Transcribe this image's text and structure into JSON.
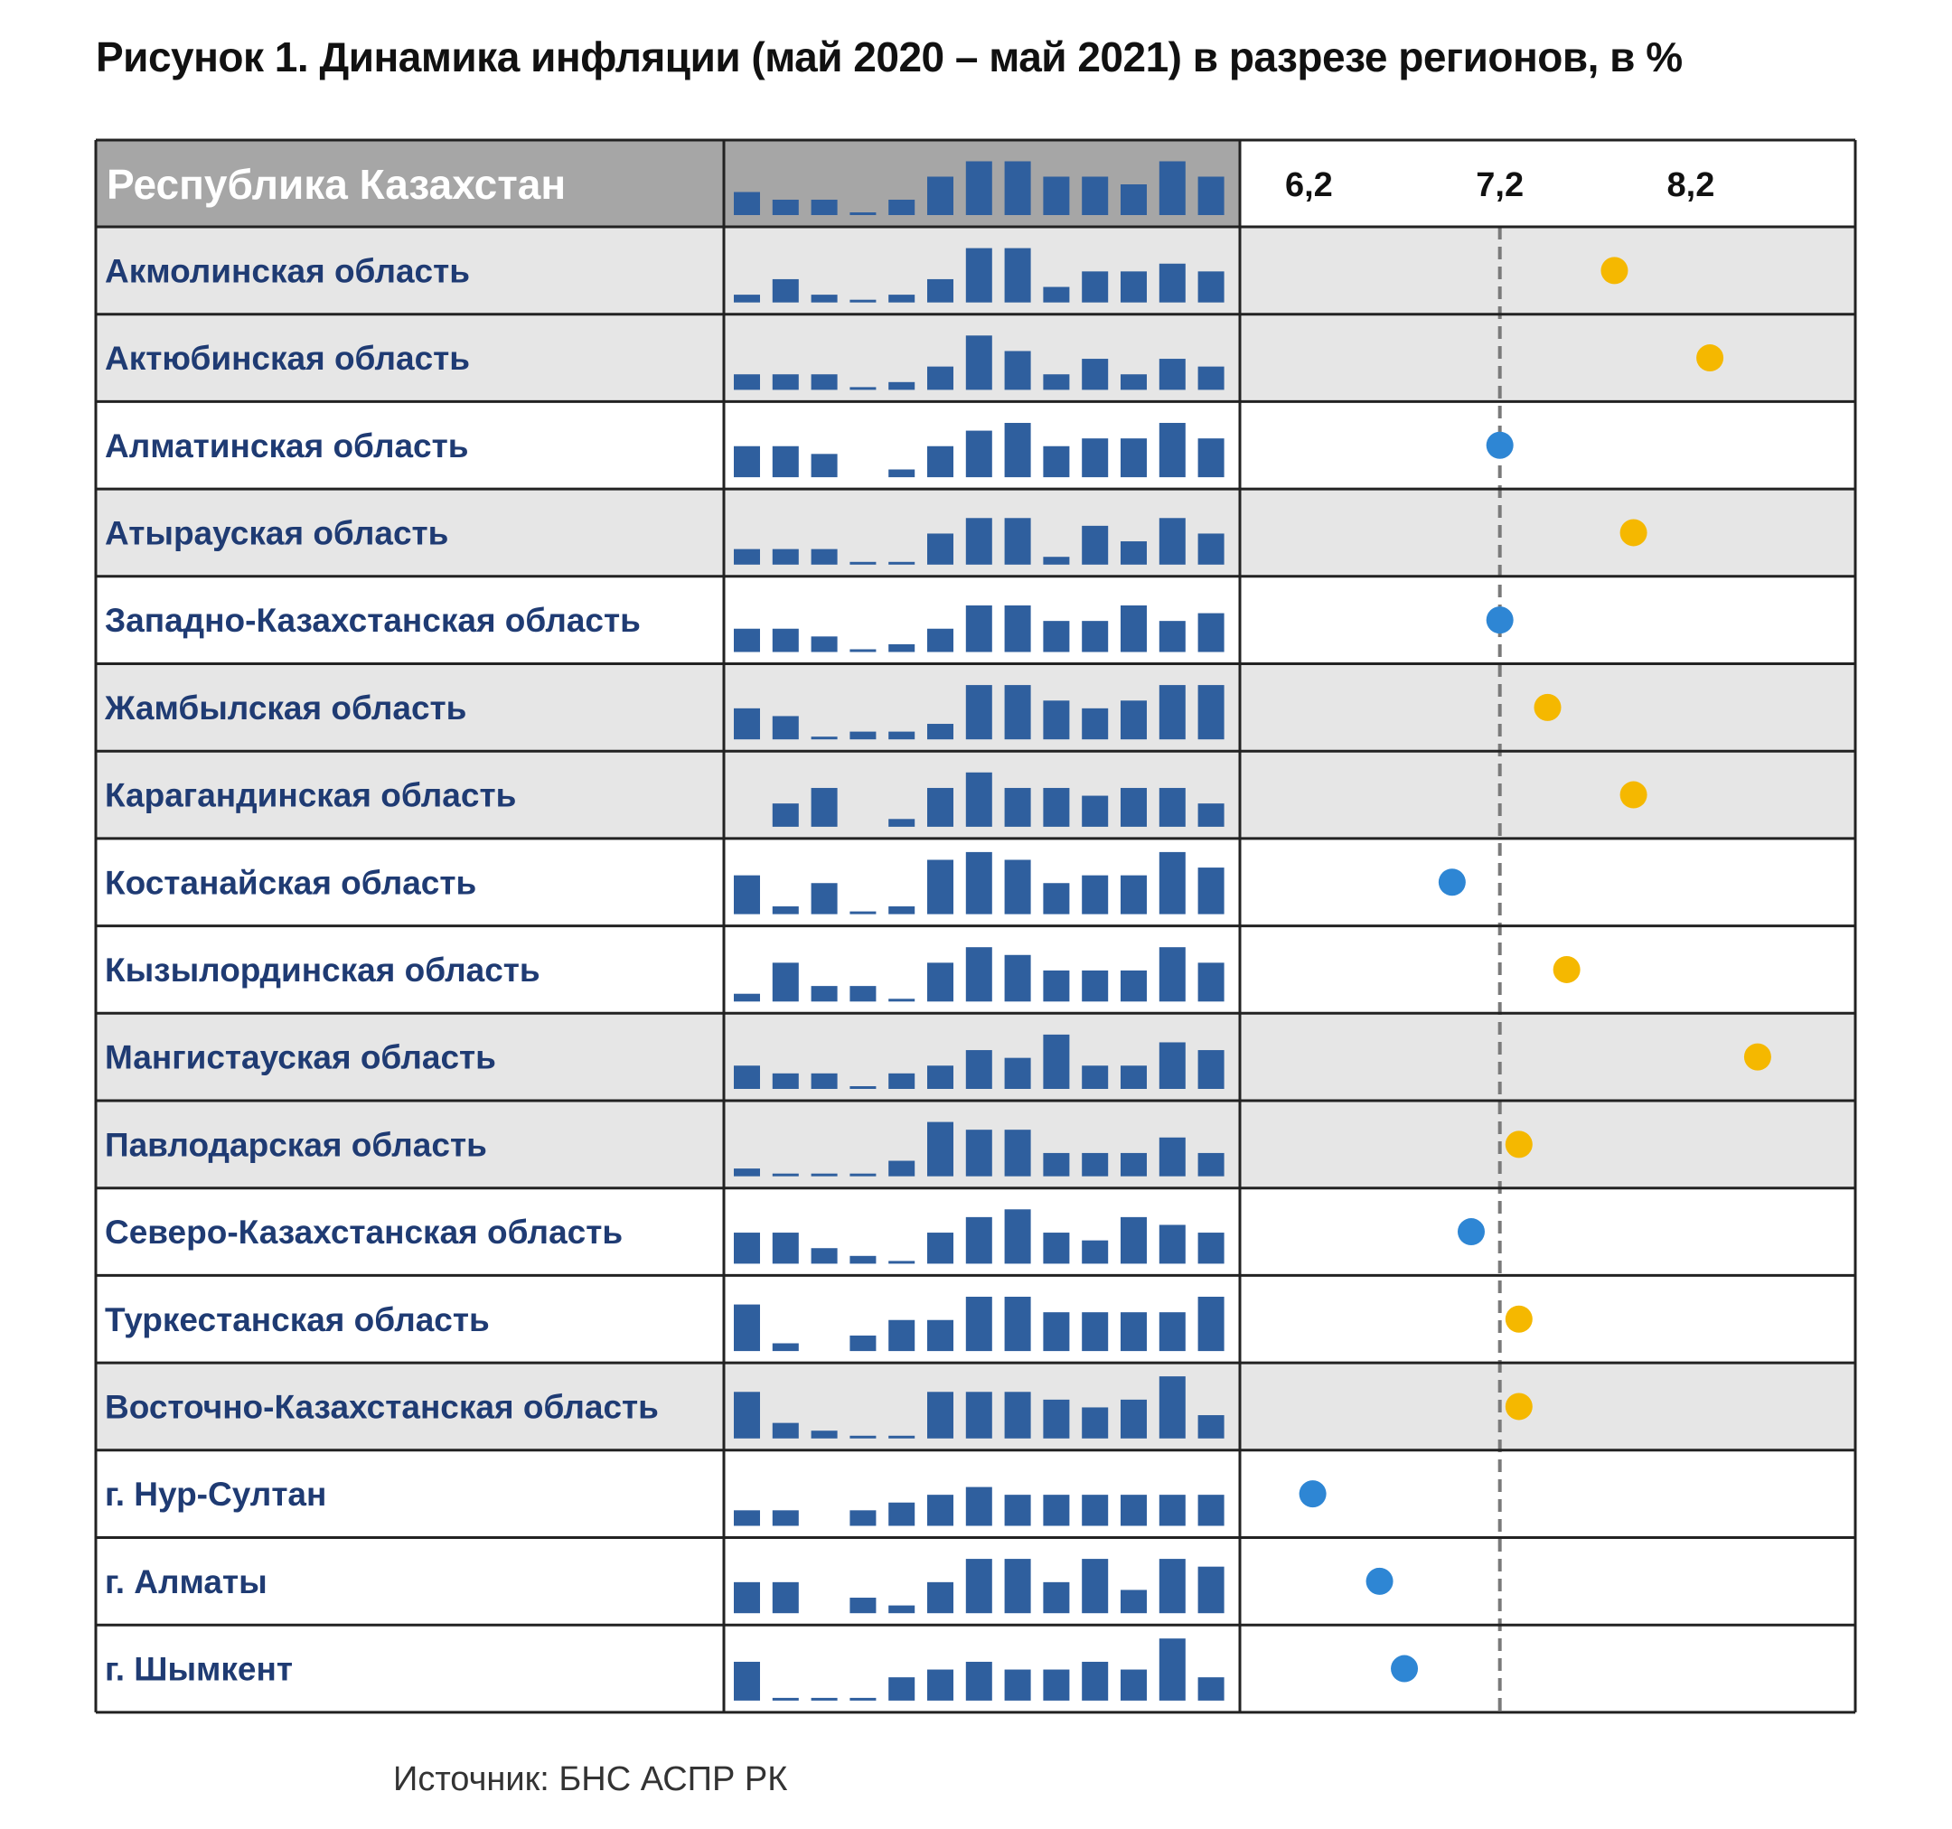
{
  "title": "Рисунок 1. Динамика инфляции (май 2020 – май 2021) в разрезе регионов, в %",
  "source": "Источник: БНС АСПР РК",
  "colors": {
    "bar": "#2f5f9e",
    "header_bg": "#a6a6a6",
    "row_shaded": "#e6e6e6",
    "row_white": "#ffffff",
    "label": "#1f3b73",
    "dot_above": "#f5b800",
    "dot_below": "#2e86d4",
    "reference_line": "#7a7a7a",
    "border": "#222222"
  },
  "chart_data": {
    "type": "table",
    "header": {
      "label": "Республика Казахстан",
      "sparkline": [
        3,
        2,
        2,
        0,
        2,
        5,
        7,
        7,
        5,
        5,
        4,
        7,
        5
      ],
      "axis_ticks": [
        "6,2",
        "7,2",
        "8,2"
      ]
    },
    "x_axis": {
      "min": 5.9,
      "max": 9.0,
      "tick_values": [
        6.2,
        7.2,
        8.2
      ]
    },
    "reference_value": 7.2,
    "sparkline_months": 13,
    "sparkline_note": "relative monthly inflation levels, май 2020 – май 2021",
    "rows": [
      {
        "label": "Акмолинская область",
        "shaded": true,
        "value": 7.8,
        "above": true,
        "sparkline": [
          1,
          3,
          1,
          0,
          1,
          3,
          7,
          7,
          2,
          4,
          4,
          5,
          4
        ]
      },
      {
        "label": "Актюбинская область",
        "shaded": true,
        "value": 8.3,
        "above": true,
        "sparkline": [
          2,
          2,
          2,
          0,
          1,
          3,
          7,
          5,
          2,
          4,
          2,
          4,
          3
        ]
      },
      {
        "label": "Алматинская область",
        "shaded": false,
        "value": 7.2,
        "above": false,
        "sparkline": [
          4,
          4,
          3,
          null,
          1,
          4,
          6,
          7,
          4,
          5,
          5,
          7,
          5
        ]
      },
      {
        "label": "Атырауская область",
        "shaded": true,
        "value": 7.9,
        "above": true,
        "sparkline": [
          2,
          2,
          2,
          0,
          0,
          4,
          6,
          6,
          1,
          5,
          3,
          6,
          4
        ]
      },
      {
        "label": "Западно-Казахстанская область",
        "shaded": false,
        "value": 7.2,
        "above": false,
        "sparkline": [
          3,
          3,
          2,
          0,
          1,
          3,
          6,
          6,
          4,
          4,
          6,
          4,
          5
        ]
      },
      {
        "label": "Жамбылская область",
        "shaded": true,
        "value": 7.45,
        "above": true,
        "sparkline": [
          4,
          3,
          0,
          1,
          1,
          2,
          7,
          7,
          5,
          4,
          5,
          7,
          7
        ]
      },
      {
        "label": "Карагандинская область",
        "shaded": true,
        "value": 7.9,
        "above": true,
        "sparkline": [
          null,
          3,
          5,
          null,
          1,
          5,
          7,
          5,
          5,
          4,
          5,
          5,
          3
        ]
      },
      {
        "label": "Костанайская область",
        "shaded": false,
        "value": 6.95,
        "above": false,
        "sparkline": [
          5,
          1,
          4,
          0,
          1,
          7,
          8,
          7,
          4,
          5,
          5,
          8,
          6
        ]
      },
      {
        "label": "Кызылординская область",
        "shaded": false,
        "value": 7.55,
        "above": true,
        "sparkline": [
          1,
          5,
          2,
          2,
          0,
          5,
          7,
          6,
          4,
          4,
          4,
          7,
          5
        ]
      },
      {
        "label": "Мангистауская область",
        "shaded": true,
        "value": 8.55,
        "above": true,
        "sparkline": [
          3,
          2,
          2,
          0,
          2,
          3,
          5,
          4,
          7,
          3,
          3,
          6,
          5
        ]
      },
      {
        "label": "Павлодарская область",
        "shaded": true,
        "value": 7.3,
        "above": true,
        "sparkline": [
          1,
          0,
          0,
          0,
          2,
          7,
          6,
          6,
          3,
          3,
          3,
          5,
          3
        ]
      },
      {
        "label": "Северо-Казахстанская область",
        "shaded": false,
        "value": 7.05,
        "above": false,
        "sparkline": [
          4,
          4,
          2,
          1,
          0,
          4,
          6,
          7,
          4,
          3,
          6,
          5,
          4
        ]
      },
      {
        "label": "Туркестанская область",
        "shaded": false,
        "value": 7.3,
        "above": true,
        "sparkline": [
          6,
          1,
          null,
          2,
          4,
          4,
          7,
          7,
          5,
          5,
          5,
          5,
          7
        ]
      },
      {
        "label": "Восточно-Казахстанская область",
        "shaded": true,
        "value": 7.3,
        "above": true,
        "sparkline": [
          6,
          2,
          1,
          0,
          0,
          6,
          6,
          6,
          5,
          4,
          5,
          8,
          3
        ]
      },
      {
        "label": "г. Нур-Султан",
        "shaded": false,
        "value": 6.22,
        "above": false,
        "sparkline": [
          2,
          2,
          null,
          2,
          3,
          4,
          5,
          4,
          4,
          4,
          4,
          4,
          4
        ]
      },
      {
        "label": "г. Алматы",
        "shaded": false,
        "value": 6.57,
        "above": false,
        "sparkline": [
          4,
          4,
          null,
          2,
          1,
          4,
          7,
          7,
          4,
          7,
          3,
          7,
          6
        ]
      },
      {
        "label": "г. Шымкент",
        "shaded": false,
        "value": 6.7,
        "above": false,
        "sparkline": [
          5,
          0,
          0,
          0,
          3,
          4,
          5,
          4,
          4,
          5,
          4,
          8,
          3
        ]
      }
    ]
  }
}
